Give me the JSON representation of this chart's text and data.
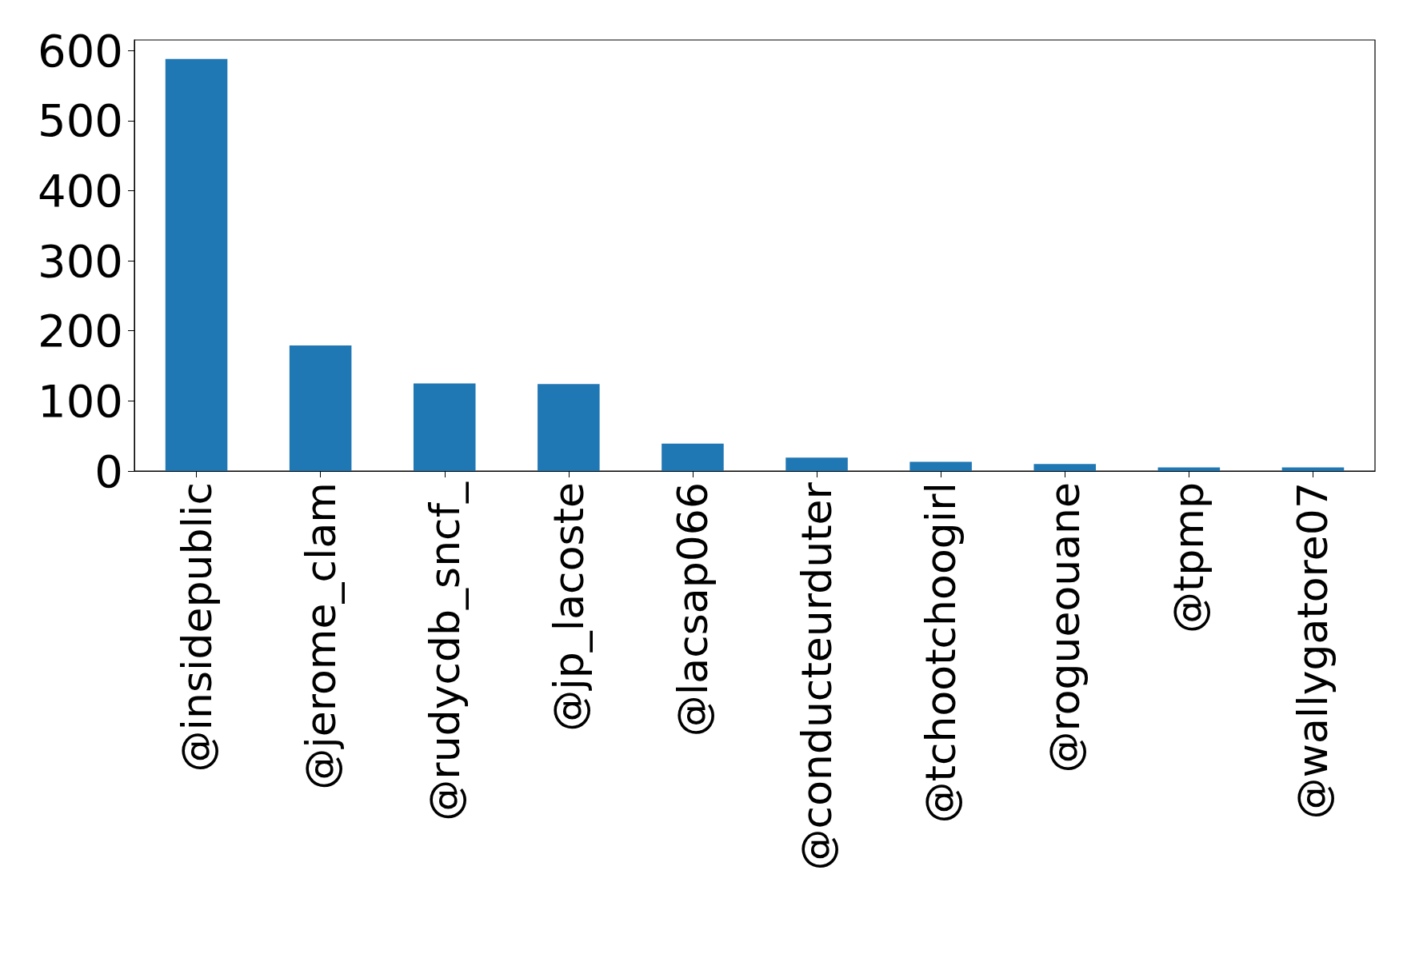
{
  "chart_data": {
    "type": "bar",
    "categories": [
      "@insidepublic",
      "@jerome_clam",
      "@rudycdb_sncf_",
      "@jp_lacoste",
      "@lacsap066",
      "@conducteurduter",
      "@tchootchoogirl",
      "@rogueouane",
      "@tpmp",
      "@wallygatore07"
    ],
    "values": [
      588,
      179,
      125,
      124,
      39,
      19,
      13,
      10,
      5,
      5
    ],
    "color": "#1f77b4",
    "ylim": [
      0,
      615
    ],
    "yticks": [
      0,
      100,
      200,
      300,
      400,
      500,
      600
    ],
    "grid": false
  }
}
